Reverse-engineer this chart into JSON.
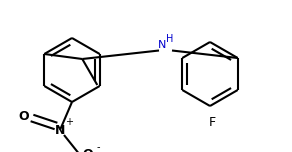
{
  "bg_color": "#ffffff",
  "line_color": "#000000",
  "nh_color": "#0000cd",
  "lw": 1.5,
  "figsize": [
    2.92,
    1.52
  ],
  "dpi": 100,
  "xlim": [
    0,
    292
  ],
  "ylim": [
    0,
    152
  ]
}
